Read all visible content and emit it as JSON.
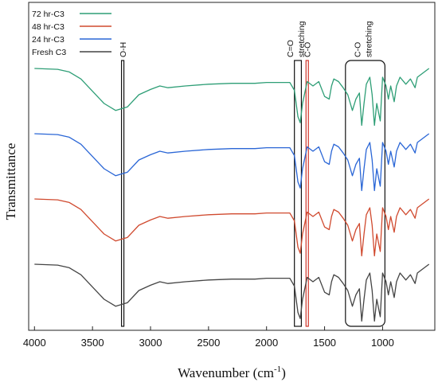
{
  "chart_data": {
    "type": "line",
    "xlabel": "Wavenumber (cm-1)",
    "xlabel_base": "Wavenumber (cm",
    "xlabel_sup": "-1",
    "xlabel_close": ")",
    "ylabel": "Transmittance",
    "x_reversed": true,
    "xlim": [
      4050,
      550
    ],
    "x_ticks": [
      4000,
      3500,
      3000,
      2500,
      2000,
      1500,
      1000
    ],
    "x_tick_labels": [
      "4000",
      "3500",
      "3000",
      "2500",
      "2000",
      "1500",
      "1000"
    ],
    "y_ticks_shown": false,
    "grid": false,
    "legend_position": "top-left",
    "series": [
      {
        "name": "72 hr-C3",
        "color": "#2e9e76",
        "offset": 3,
        "x": [
          4000,
          3800,
          3700,
          3600,
          3500,
          3400,
          3300,
          3200,
          3100,
          3000,
          2920,
          2850,
          2700,
          2500,
          2300,
          2100,
          2000,
          1800,
          1760,
          1730,
          1710,
          1690,
          1650,
          1600,
          1550,
          1500,
          1460,
          1440,
          1420,
          1380,
          1340,
          1300,
          1260,
          1230,
          1200,
          1180,
          1160,
          1140,
          1110,
          1090,
          1070,
          1050,
          1020,
          1000,
          970,
          950,
          930,
          900,
          880,
          850,
          800,
          760,
          720,
          700,
          650,
          600
        ],
        "y": [
          0.0,
          -0.01,
          -0.04,
          -0.12,
          -0.26,
          -0.4,
          -0.48,
          -0.44,
          -0.3,
          -0.24,
          -0.2,
          -0.22,
          -0.2,
          -0.18,
          -0.17,
          -0.17,
          -0.16,
          -0.16,
          -0.25,
          -0.55,
          -0.62,
          -0.4,
          -0.15,
          -0.2,
          -0.15,
          -0.32,
          -0.35,
          -0.2,
          -0.12,
          -0.15,
          -0.22,
          -0.3,
          -0.48,
          -0.35,
          -0.28,
          -0.65,
          -0.4,
          -0.18,
          -0.1,
          -0.3,
          -0.65,
          -0.4,
          -0.6,
          -0.1,
          -0.2,
          -0.35,
          -0.2,
          -0.38,
          -0.2,
          -0.1,
          -0.18,
          -0.12,
          -0.22,
          -0.1,
          -0.05,
          0.0
        ]
      },
      {
        "name": "48 hr-C3",
        "color": "#d04a2f",
        "offset": 1,
        "x": [
          4000,
          3800,
          3700,
          3600,
          3500,
          3400,
          3300,
          3200,
          3100,
          3000,
          2920,
          2850,
          2700,
          2500,
          2300,
          2100,
          2000,
          1800,
          1760,
          1730,
          1710,
          1690,
          1650,
          1600,
          1550,
          1500,
          1460,
          1440,
          1420,
          1380,
          1340,
          1300,
          1260,
          1230,
          1200,
          1180,
          1160,
          1140,
          1110,
          1090,
          1070,
          1050,
          1020,
          1000,
          970,
          950,
          930,
          900,
          880,
          850,
          800,
          760,
          720,
          700,
          650,
          600
        ],
        "y": [
          0.0,
          -0.01,
          -0.04,
          -0.12,
          -0.26,
          -0.4,
          -0.48,
          -0.44,
          -0.3,
          -0.24,
          -0.2,
          -0.22,
          -0.2,
          -0.18,
          -0.17,
          -0.17,
          -0.16,
          -0.16,
          -0.25,
          -0.55,
          -0.62,
          -0.4,
          -0.15,
          -0.2,
          -0.15,
          -0.32,
          -0.35,
          -0.2,
          -0.12,
          -0.15,
          -0.22,
          -0.3,
          -0.48,
          -0.35,
          -0.28,
          -0.65,
          -0.4,
          -0.18,
          -0.1,
          -0.3,
          -0.65,
          -0.4,
          -0.6,
          -0.1,
          -0.2,
          -0.35,
          -0.2,
          -0.38,
          -0.2,
          -0.1,
          -0.18,
          -0.12,
          -0.22,
          -0.1,
          -0.05,
          0.0
        ]
      },
      {
        "name": "24 hr-C3",
        "color": "#2a66d6",
        "offset": 2,
        "x": [
          4000,
          3800,
          3700,
          3600,
          3500,
          3400,
          3300,
          3200,
          3100,
          3000,
          2920,
          2850,
          2700,
          2500,
          2300,
          2100,
          2000,
          1800,
          1760,
          1730,
          1710,
          1690,
          1650,
          1600,
          1550,
          1500,
          1460,
          1440,
          1420,
          1380,
          1340,
          1300,
          1260,
          1230,
          1200,
          1180,
          1160,
          1140,
          1110,
          1090,
          1070,
          1050,
          1020,
          1000,
          970,
          950,
          930,
          900,
          880,
          850,
          800,
          760,
          720,
          700,
          650,
          600
        ],
        "y": [
          0.0,
          -0.01,
          -0.04,
          -0.12,
          -0.26,
          -0.4,
          -0.48,
          -0.44,
          -0.3,
          -0.24,
          -0.2,
          -0.22,
          -0.2,
          -0.18,
          -0.17,
          -0.17,
          -0.16,
          -0.16,
          -0.25,
          -0.55,
          -0.62,
          -0.4,
          -0.15,
          -0.2,
          -0.15,
          -0.32,
          -0.35,
          -0.2,
          -0.12,
          -0.15,
          -0.22,
          -0.3,
          -0.48,
          -0.35,
          -0.28,
          -0.65,
          -0.4,
          -0.18,
          -0.1,
          -0.3,
          -0.65,
          -0.4,
          -0.6,
          -0.1,
          -0.2,
          -0.35,
          -0.2,
          -0.38,
          -0.2,
          -0.1,
          -0.18,
          -0.12,
          -0.22,
          -0.1,
          -0.05,
          0.0
        ]
      },
      {
        "name": "Fresh C3",
        "color": "#444444",
        "offset": 0,
        "x": [
          4000,
          3800,
          3700,
          3600,
          3500,
          3400,
          3300,
          3200,
          3100,
          3000,
          2920,
          2850,
          2700,
          2500,
          2300,
          2100,
          2000,
          1800,
          1760,
          1730,
          1710,
          1690,
          1650,
          1600,
          1550,
          1500,
          1460,
          1440,
          1420,
          1380,
          1340,
          1300,
          1260,
          1230,
          1200,
          1180,
          1160,
          1140,
          1110,
          1090,
          1070,
          1050,
          1020,
          1000,
          970,
          950,
          930,
          900,
          880,
          850,
          800,
          760,
          720,
          700,
          650,
          600
        ],
        "y": [
          0.0,
          -0.01,
          -0.04,
          -0.12,
          -0.26,
          -0.4,
          -0.48,
          -0.44,
          -0.3,
          -0.24,
          -0.2,
          -0.22,
          -0.2,
          -0.18,
          -0.17,
          -0.17,
          -0.16,
          -0.16,
          -0.25,
          -0.55,
          -0.62,
          -0.4,
          -0.15,
          -0.2,
          -0.15,
          -0.32,
          -0.35,
          -0.2,
          -0.12,
          -0.15,
          -0.22,
          -0.3,
          -0.48,
          -0.35,
          -0.28,
          -0.65,
          -0.4,
          -0.18,
          -0.1,
          -0.3,
          -0.65,
          -0.4,
          -0.6,
          -0.1,
          -0.2,
          -0.35,
          -0.2,
          -0.38,
          -0.2,
          -0.1,
          -0.18,
          -0.12,
          -0.22,
          -0.1,
          -0.05,
          0.0
        ]
      }
    ],
    "annotations": [
      {
        "label": "O-H",
        "x_from": 3250,
        "x_to": 3230,
        "color": "#111111"
      },
      {
        "label": "C=O",
        "label2": "stretching",
        "x_from": 1760,
        "x_to": 1700,
        "color": "#111111"
      },
      {
        "label": "C-O",
        "x_from": 1660,
        "x_to": 1640,
        "color": "#d0352a"
      },
      {
        "label": "C-O",
        "label2": "stretching",
        "x_from": 1320,
        "x_to": 980,
        "color": "#111111",
        "rounded": true
      }
    ]
  }
}
